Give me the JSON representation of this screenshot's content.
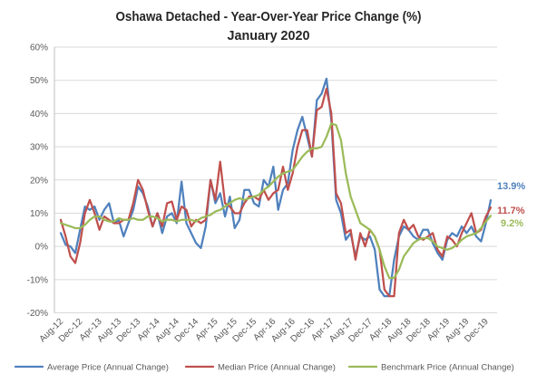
{
  "chart_data": {
    "type": "line",
    "title": "Oshawa Detached - Year-Over-Year Price Change (%)",
    "subtitle": "January 2020",
    "ylim": [
      -20,
      60
    ],
    "y_tick_labels": [
      "60%",
      "50%",
      "40%",
      "30%",
      "20%",
      "10%",
      "0%",
      "-10%",
      "-20%"
    ],
    "x_tick_labels": [
      "Aug-12",
      "Dec-12",
      "Apr-13",
      "Aug-13",
      "Dec-13",
      "Apr-14",
      "Aug-14",
      "Dec-14",
      "Apr-15",
      "Aug-15",
      "Dec-15",
      "Apr-16",
      "Aug-16",
      "Dec-16",
      "Apr-17",
      "Aug-17",
      "Dec-17",
      "Apr-18",
      "Aug-18",
      "Dec-18",
      "Apr-19",
      "Aug-19",
      "Dec-19"
    ],
    "grid": "horizontal",
    "legend": "bottom",
    "series": [
      {
        "name": "Average Price (Annual Change)",
        "color": "#4f81bd",
        "end_label": "13.9%",
        "values": [
          4,
          0.5,
          0,
          -2,
          5,
          12,
          11,
          12,
          8,
          11,
          13,
          7,
          8,
          3,
          7,
          11,
          18,
          16,
          12,
          6,
          10,
          4,
          9,
          10,
          7,
          19.5,
          7,
          4,
          1,
          -0.5,
          6,
          20,
          13,
          16,
          9,
          15,
          5.5,
          8,
          17,
          17,
          13,
          12,
          20,
          18,
          24,
          11,
          17,
          19,
          29,
          35,
          39,
          33,
          27,
          44,
          46,
          50.5,
          38,
          14,
          10,
          2,
          4,
          -3,
          3,
          2,
          3,
          -1,
          -13,
          -15,
          -15,
          -4,
          3,
          6,
          5,
          3,
          2,
          5,
          5,
          1,
          -2,
          -4,
          2,
          4,
          3,
          6,
          4,
          6,
          3,
          1.5,
          7,
          13.9
        ]
      },
      {
        "name": "Median Price (Annual Change)",
        "color": "#c0504d",
        "end_label": "11.7%",
        "values": [
          8,
          3,
          -3,
          -5,
          1,
          10,
          14,
          10,
          5,
          9,
          8,
          7,
          7,
          8,
          8,
          13,
          20,
          17,
          11,
          6,
          10,
          6,
          13,
          13.5,
          8,
          12,
          11,
          6,
          8,
          7,
          8,
          20,
          14,
          25.5,
          13,
          12,
          10,
          10,
          13,
          15,
          15,
          14,
          17,
          14,
          16,
          17,
          24,
          17,
          22,
          30,
          35,
          35,
          27,
          41,
          42,
          47.5,
          40,
          16,
          13,
          4,
          5,
          -4,
          4,
          0,
          5,
          3,
          -1,
          -13,
          -15,
          -15,
          4,
          8,
          5,
          6.5,
          3,
          2,
          3,
          4,
          -1,
          -3,
          3,
          2,
          0,
          4,
          7,
          10,
          4,
          5,
          9,
          11.7
        ]
      },
      {
        "name": "Benchmark Price (Annual Change)",
        "color": "#9bbb59",
        "end_label": "9.2%",
        "values": [
          7,
          6.5,
          6,
          5.5,
          5.5,
          6.5,
          8,
          9,
          9,
          8,
          7.5,
          7.5,
          8.5,
          8,
          8,
          8.5,
          8,
          8,
          9,
          9,
          8.5,
          7.5,
          8,
          8,
          7.5,
          8,
          8,
          8,
          7.5,
          8.5,
          9,
          9.5,
          10.5,
          11,
          12,
          13,
          14,
          14.5,
          14,
          14.5,
          15,
          15.5,
          17,
          18,
          19.5,
          21,
          22,
          22.5,
          23,
          25,
          27,
          28.5,
          29.5,
          29.5,
          30,
          33,
          37,
          36.5,
          32,
          22,
          15,
          11,
          7,
          6,
          5,
          3,
          -1,
          -6,
          -9.5,
          -9.5,
          -7,
          -3,
          -1,
          1,
          2,
          2.5,
          2.5,
          1.5,
          0,
          -0.5,
          -1,
          -0.5,
          0.5,
          2,
          3,
          3.5,
          4,
          5.5,
          7.5,
          9.2
        ]
      }
    ]
  }
}
